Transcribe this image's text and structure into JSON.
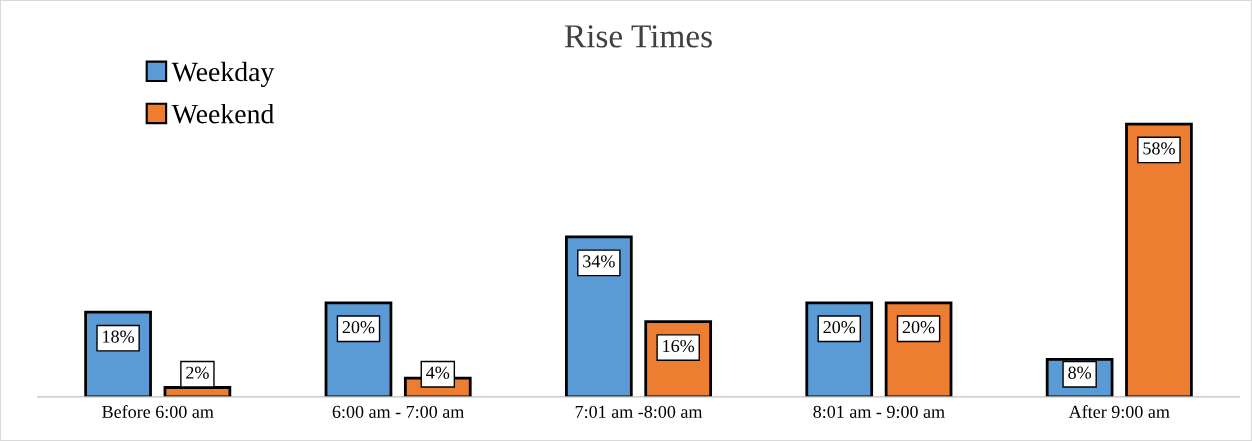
{
  "chart_data": {
    "type": "bar",
    "title": "Rise Times",
    "categories": [
      "Before 6:00 am",
      "6:00 am - 7:00 am",
      "7:01 am -8:00 am",
      "8:01 am - 9:00 am",
      "After 9:00 am"
    ],
    "series": [
      {
        "name": "Weekday",
        "color": "#5b9bd5",
        "values": [
          18,
          20,
          34,
          20,
          8
        ],
        "value_labels": [
          "18%",
          "20%",
          "34%",
          "20%",
          "8%"
        ]
      },
      {
        "name": "Weekend",
        "color": "#ed7d31",
        "values": [
          2,
          4,
          16,
          20,
          58
        ],
        "value_labels": [
          "2%",
          "4%",
          "16%",
          "20%",
          "58%"
        ]
      }
    ],
    "legend": "top left",
    "grid": false
  }
}
